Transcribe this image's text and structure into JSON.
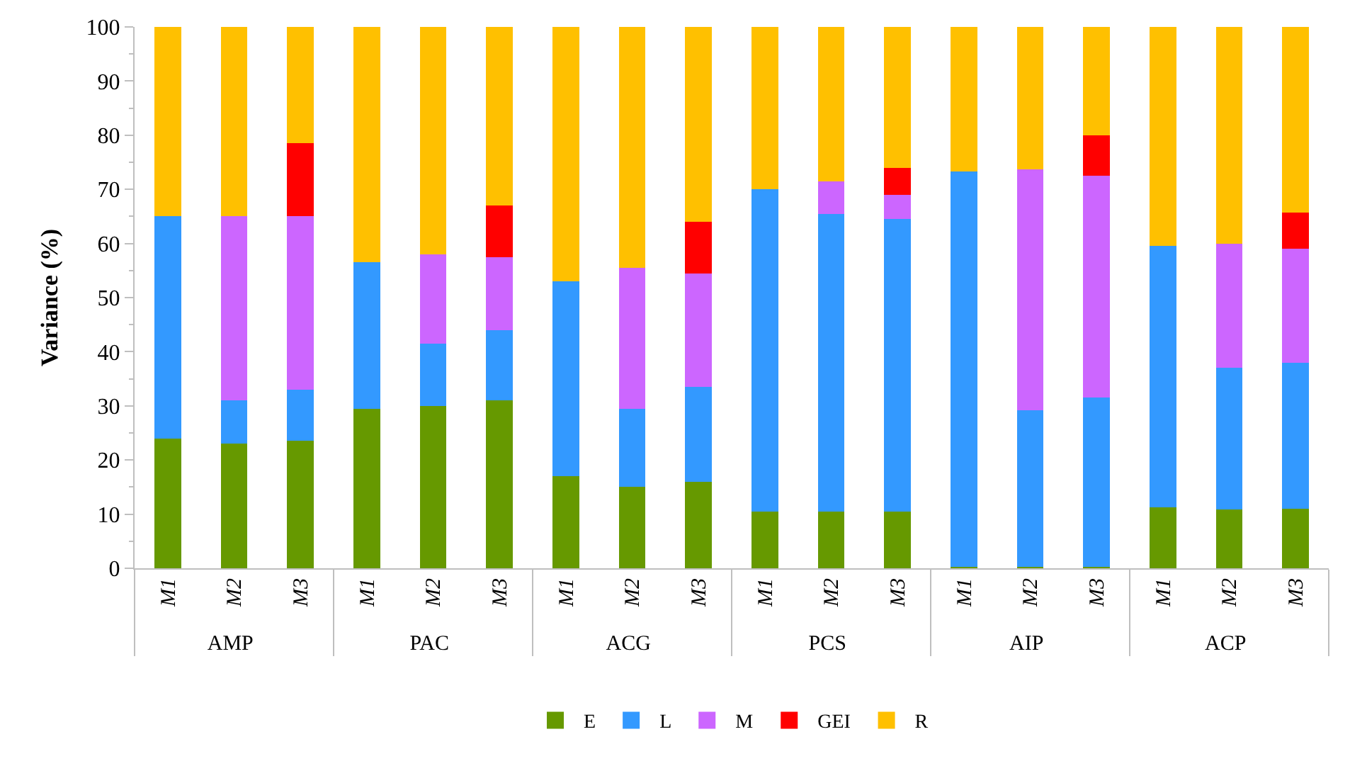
{
  "chart_data": {
    "type": "bar",
    "stacked": true,
    "ylabel": "Variance (%)",
    "categories": [
      "M1",
      "M2",
      "M3",
      "M1",
      "M2",
      "M3",
      "M1",
      "M2",
      "M3",
      "M1",
      "M2",
      "M3",
      "M1",
      "M2",
      "M3",
      "M1",
      "M2",
      "M3"
    ],
    "annotations": [
      "AMP",
      "PAC",
      "ACG",
      "PCS",
      "AIP",
      "ACP"
    ],
    "series": [
      {
        "name": "E",
        "color": "#669900",
        "values": [
          24,
          23,
          23.5,
          29.5,
          30,
          31,
          17,
          15,
          16,
          10.5,
          10.5,
          10.5,
          0.2,
          0.2,
          0.2,
          11.3,
          10.8,
          11
        ]
      },
      {
        "name": "L",
        "color": "#3399ff",
        "values": [
          41,
          8,
          9.5,
          27,
          11.5,
          13,
          36,
          14.5,
          17.5,
          59.5,
          55,
          54,
          73.1,
          29,
          31.3,
          48.2,
          26.2,
          27
        ]
      },
      {
        "name": "M",
        "color": "#cc66ff",
        "values": [
          0,
          34,
          32,
          0,
          16.5,
          13.5,
          0,
          26,
          21,
          0,
          6,
          4.5,
          0,
          44.5,
          41,
          0,
          23,
          21
        ]
      },
      {
        "name": "GEI",
        "color": "#ff0000",
        "values": [
          0,
          0,
          13.5,
          0,
          0,
          9.5,
          0,
          0,
          9.5,
          0,
          0,
          5,
          0,
          0,
          7.5,
          0,
          0,
          6.7
        ]
      },
      {
        "name": "R",
        "color": "#ffc000",
        "values": [
          35,
          35,
          21.5,
          43.5,
          42,
          33,
          47,
          44.5,
          36,
          30,
          28.5,
          26,
          26.7,
          26.3,
          20,
          40.5,
          40,
          34.3
        ]
      }
    ],
    "ylim": [
      0,
      100
    ],
    "yticks": [
      0,
      10,
      20,
      30,
      40,
      50,
      60,
      70,
      80,
      90,
      100
    ],
    "grid": false,
    "legend": "bottom"
  }
}
